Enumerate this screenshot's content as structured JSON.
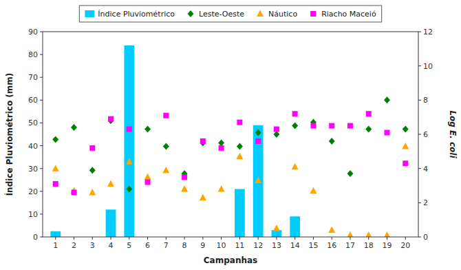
{
  "chart_data": {
    "type": "bar",
    "xlabel": "Campanhas",
    "ylabel": "Índice Pluviométrico (mm)",
    "y2label": "Log E. coli",
    "x": [
      1,
      2,
      3,
      4,
      5,
      6,
      7,
      8,
      9,
      10,
      11,
      12,
      13,
      14,
      15,
      16,
      17,
      18,
      19,
      20
    ],
    "xlim": [
      0.3,
      20.7
    ],
    "xticks": [
      1,
      2,
      3,
      4,
      5,
      6,
      7,
      8,
      9,
      10,
      11,
      12,
      13,
      14,
      15,
      16,
      17,
      18,
      19,
      20
    ],
    "ylim": [
      0,
      90
    ],
    "yticks": [
      0,
      10,
      20,
      30,
      40,
      50,
      60,
      70,
      80,
      90
    ],
    "y2lim": [
      0,
      12
    ],
    "y2ticks": [
      0,
      2,
      4,
      6,
      8,
      10,
      12
    ],
    "grid": false,
    "legend": "top",
    "series": [
      {
        "name": "Índice Pluviométrico",
        "type": "bar",
        "color": "#00CCFF",
        "values": [
          2.5,
          0,
          0,
          12,
          84,
          0,
          0,
          0,
          0,
          0,
          21,
          49,
          3,
          9,
          0,
          0,
          0,
          0,
          0,
          0
        ]
      },
      {
        "name": "Leste-Oeste",
        "type": "scatter",
        "axis": "y2",
        "color": "#008000",
        "marker": "diamond",
        "values": [
          5.7,
          6.4,
          3.9,
          6.8,
          2.8,
          6.3,
          5.3,
          3.7,
          5.5,
          5.5,
          5.3,
          6.1,
          6.0,
          6.5,
          6.7,
          5.6,
          3.7,
          6.3,
          8.0,
          6.3
        ]
      },
      {
        "name": "Náutico",
        "type": "scatter",
        "axis": "y2",
        "color": "#FFA500",
        "marker": "triangle",
        "values": [
          4.0,
          2.7,
          2.6,
          3.1,
          4.4,
          3.5,
          3.9,
          2.8,
          2.3,
          2.8,
          4.7,
          3.3,
          0.5,
          4.1,
          2.7,
          0.4,
          0.1,
          0.1,
          0.1,
          5.3
        ]
      },
      {
        "name": "Riacho Maceió",
        "type": "scatter",
        "axis": "y2",
        "color": "#FF00FF",
        "marker": "square",
        "values": [
          3.1,
          2.6,
          5.2,
          6.9,
          6.3,
          3.2,
          7.1,
          3.5,
          5.6,
          5.2,
          6.7,
          5.6,
          6.3,
          7.2,
          6.5,
          6.5,
          6.5,
          7.2,
          6.1,
          4.3
        ]
      }
    ]
  }
}
